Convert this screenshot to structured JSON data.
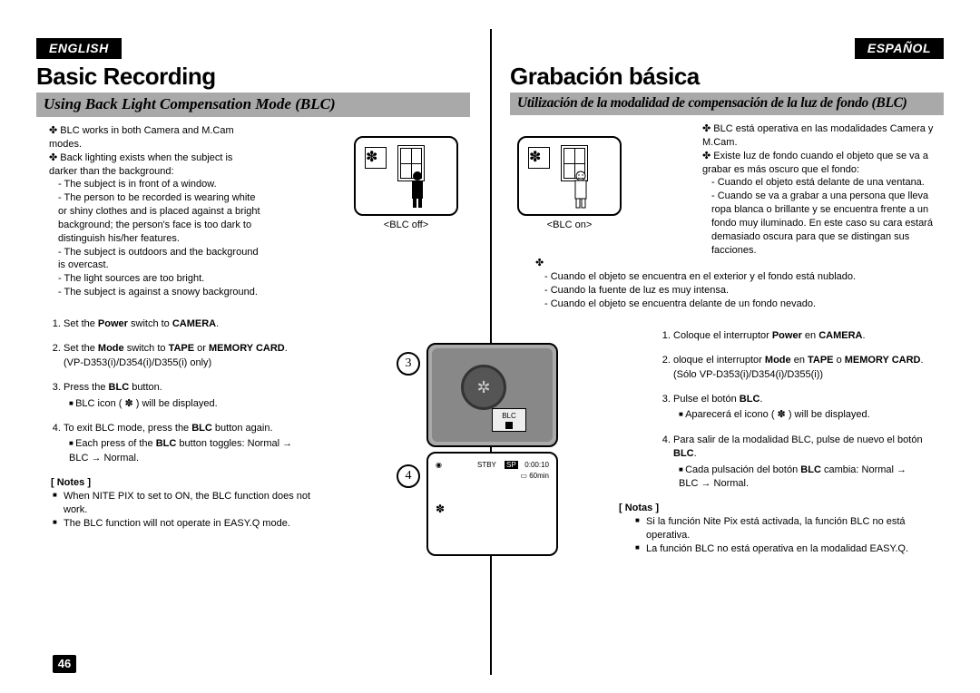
{
  "page_number": "46",
  "lang": {
    "en": "ENGLISH",
    "es": "ESPAÑOL"
  },
  "en": {
    "title": "Basic Recording",
    "subtitle": "Using Back Light Compensation Mode (BLC)",
    "intro1": "BLC works in both Camera and M.Cam modes.",
    "intro2": "Back lighting exists when the subject is darker than the background:",
    "intro_sub1": "The subject is in front of a window.",
    "intro_sub2": "The person to be recorded is wearing white or shiny clothes and is placed against a bright background; the person's face is too dark to distinguish his/her features.",
    "intro_sub3": "The subject is outdoors and the background is overcast.",
    "intro_sub4": "The light sources are too bright.",
    "intro_sub5": "The subject is against a snowy background.",
    "step1": "Set the <b>Power</b> switch to <b>CAMERA</b>.",
    "step2": "Set the <b>Mode</b> switch to <b>TAPE</b> or <b>MEMORY CARD</b>. (VP-D353(i)/D354(i)/D355(i) only)",
    "step3": "Press the <b>BLC</b> button.",
    "step3_sub": "BLC icon ( ✽ ) will be displayed.",
    "step4": "To exit BLC mode, press the <b>BLC</b> button again.",
    "step4_sub": "Each press of the <b>BLC</b> button toggles: Normal → BLC → Normal.",
    "notes_h": "[ Notes ]",
    "note1": "When NITE PIX to set to ON, the BLC function does not work.",
    "note2": "The BLC function will not operate in EASY.Q mode."
  },
  "es": {
    "title": "Grabación básica",
    "subtitle": "Utilización de la modalidad de compensación de la luz de fondo (BLC)",
    "intro1": "BLC está operativa en las modalidades Camera y M.Cam.",
    "intro2": "Existe luz de fondo cuando el objeto que se va a grabar es más oscuro que el fondo:",
    "intro_sub1": "Cuando el objeto está delante de una ventana.",
    "intro_sub2": "Cuando se va a grabar a una persona que lleva ropa blanca o brillante y se encuentra frente a un fondo muy iluminado. En este caso su cara estará demasiado oscura para que se distingan sus facciones.",
    "intro_full1": "Cuando el objeto se encuentra en el exterior y el fondo está nublado.",
    "intro_full2": "Cuando la fuente de luz es muy intensa.",
    "intro_full3": "Cuando el objeto se encuentra delante de un fondo nevado.",
    "step1": "Coloque el interruptor <b>Power</b> en <b>CAMERA</b>.",
    "step2": "oloque el interruptor <b>Mode</b> en <b>TAPE</b> o <b>MEMORY CARD</b>. (Sólo VP-D353(i)/D354(i)/D355(i))",
    "step3": "Pulse el botón <b>BLC</b>.",
    "step3_sub": "Aparecerá el icono ( ✽ ) will be displayed.",
    "step4": "Para salir de la modalidad BLC, pulse de nuevo el botón <b>BLC</b>.",
    "step4_sub": "Cada pulsación del botón <b>BLC</b> cambia: Normal → BLC → Normal.",
    "notes_h": "[ Notas ]",
    "note1": "Si la función Nite Pix está activada, la función BLC no está operativa.",
    "note2": "La función BLC no está operativa en la modalidad EASY.Q."
  },
  "figures": {
    "blc_off_label": "<BLC off>",
    "blc_on_label": "<BLC on>",
    "circ3": "3",
    "circ4": "4",
    "cam_btn": "BLC",
    "lcd_stby": "STBY",
    "lcd_sp": "SP",
    "lcd_time": "0:00:10",
    "lcd_min": "60min"
  },
  "colors": {
    "bg": "#ffffff",
    "badge_bg": "#000000",
    "badge_fg": "#ffffff",
    "subtitle_bg": "#a9a9a9",
    "text": "#000000"
  }
}
